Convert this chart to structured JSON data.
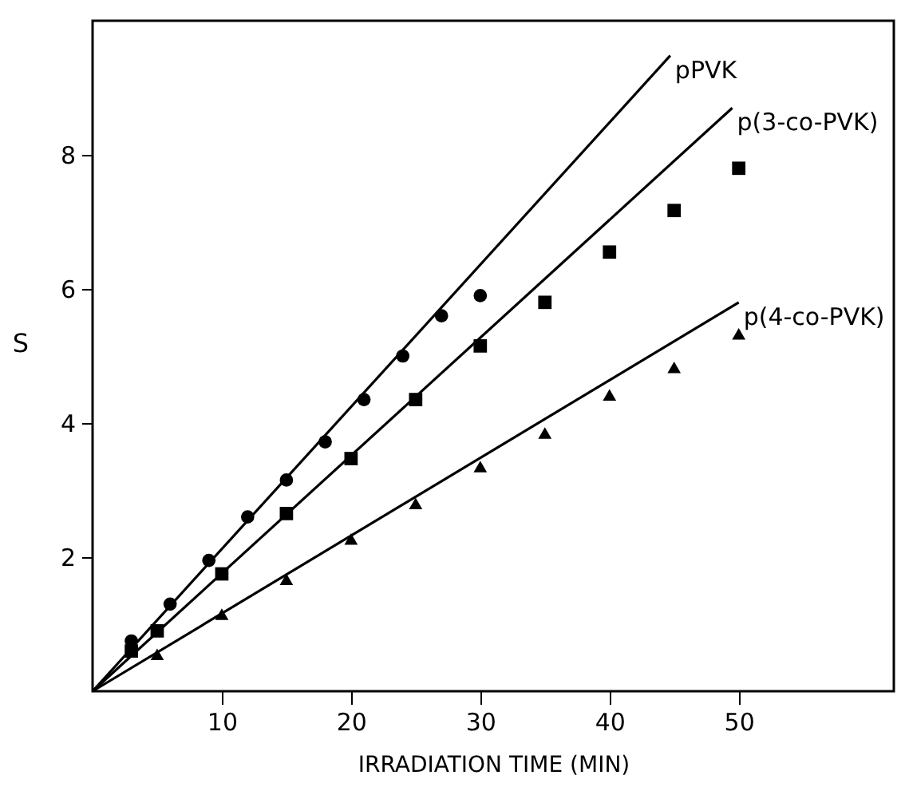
{
  "chart_data": {
    "type": "scatter",
    "xlabel": "IRRADIATION TIME (MIN)",
    "ylabel": "S",
    "xlim": [
      0,
      62
    ],
    "ylim": [
      0,
      10
    ],
    "xticks": [
      10,
      20,
      30,
      40,
      50
    ],
    "yticks": [
      2,
      4,
      6,
      8
    ],
    "series": [
      {
        "marker": "circle",
        "color": "#000000",
        "x": [
          3,
          6,
          9,
          12,
          15,
          18,
          21,
          24,
          27,
          30
        ],
        "values": [
          0.75,
          1.3,
          1.95,
          2.6,
          3.15,
          3.72,
          4.35,
          5.0,
          5.6,
          5.9
        ]
      },
      {
        "marker": "square",
        "color": "#000000",
        "x": [
          3,
          5,
          10,
          15,
          20,
          25,
          30,
          35,
          40,
          45,
          50
        ],
        "values": [
          0.6,
          0.9,
          1.75,
          2.65,
          3.47,
          4.35,
          5.15,
          5.8,
          6.55,
          7.17,
          7.8
        ]
      },
      {
        "marker": "triangle",
        "color": "#000000",
        "x": [
          5,
          10,
          15,
          20,
          25,
          30,
          35,
          40,
          45,
          50
        ],
        "values": [
          0.55,
          1.15,
          1.67,
          2.27,
          2.8,
          3.35,
          3.85,
          4.42,
          4.83,
          5.33
        ]
      },
      {
        "type": "line",
        "name": "pPVK",
        "marker": "none",
        "line_style": "solid",
        "color": "#000000",
        "x": [
          0,
          44.7
        ],
        "values": [
          0,
          9.48
        ]
      },
      {
        "type": "line",
        "name": "p(3-co-PVK)",
        "marker": "none",
        "line_style": "solid",
        "color": "#000000",
        "x": [
          0,
          49.5
        ],
        "values": [
          0,
          8.7
        ]
      },
      {
        "type": "line",
        "name": "p(4-co-PVK)",
        "marker": "none",
        "line_style": "solid",
        "color": "#000000",
        "x": [
          0,
          50
        ],
        "values": [
          0,
          5.8
        ]
      }
    ]
  }
}
